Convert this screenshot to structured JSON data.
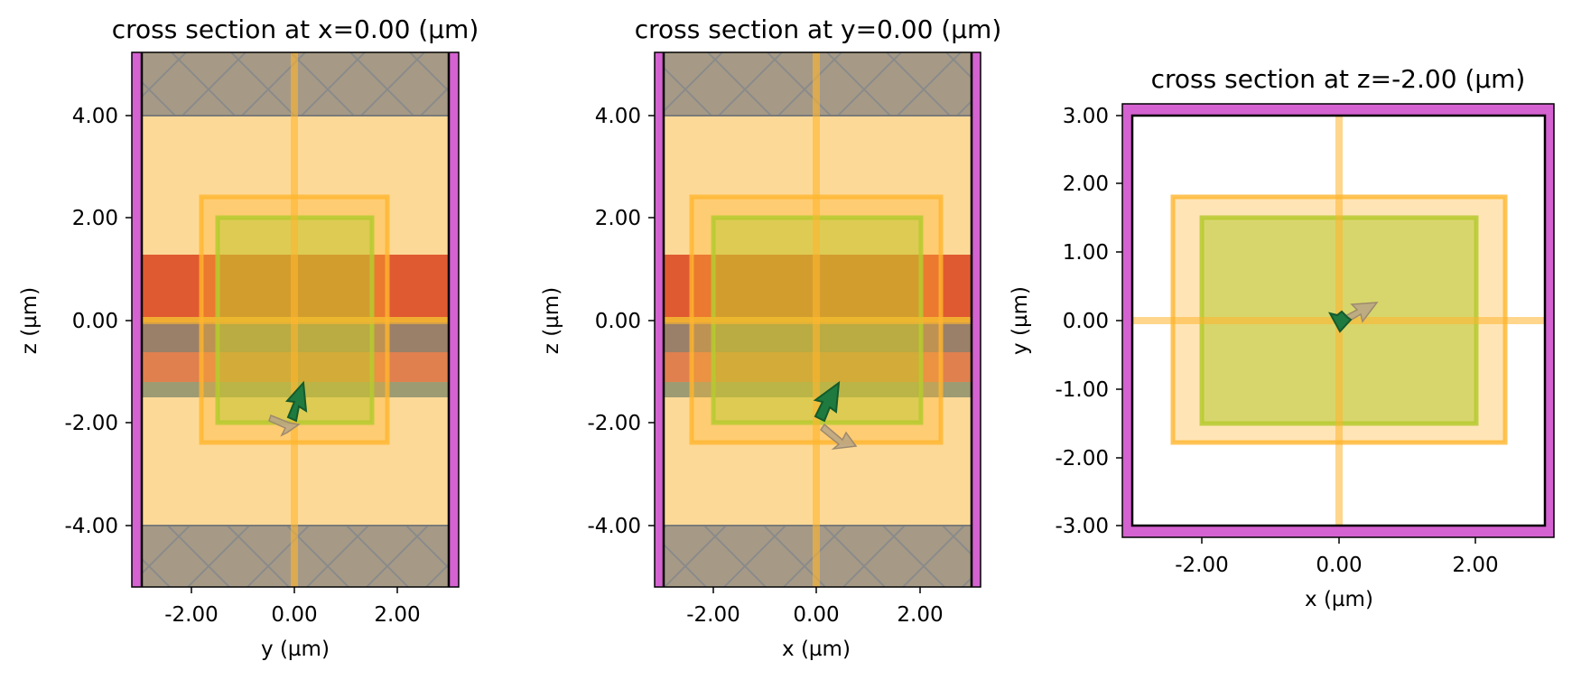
{
  "figure": {
    "panels": [
      {
        "title": "cross section at x=0.00 (µm)",
        "xlabel": "y (µm)",
        "ylabel": "z (µm)",
        "xticks": [
          "-2.00",
          "0.00",
          "2.00"
        ],
        "yticks": [
          "4.00",
          "2.00",
          "0.00",
          "-2.00",
          "-4.00"
        ]
      },
      {
        "title": "cross section at y=0.00 (µm)",
        "xlabel": "x (µm)",
        "ylabel": "z (µm)",
        "xticks": [
          "-2.00",
          "0.00",
          "2.00"
        ],
        "yticks": [
          "4.00",
          "2.00",
          "0.00",
          "-2.00",
          "-4.00"
        ]
      },
      {
        "title": "cross section at z=-2.00 (µm)",
        "xlabel": "x (µm)",
        "ylabel": "y (µm)",
        "xticks": [
          "-2.00",
          "0.00",
          "2.00"
        ],
        "yticks": [
          "3.00",
          "2.00",
          "1.00",
          "0.00",
          "-1.00",
          "-2.00",
          "-3.00"
        ]
      }
    ],
    "colors": {
      "pml": "#d462d0",
      "background": "#fdd997",
      "pml_hatch": "#a69a86",
      "layer_red": "#e05a31",
      "layer_brown": "#9a8068",
      "layer_salmon": "#e0804f",
      "layer_olive": "#9c9b72",
      "monitor_orange": "#ffb52e",
      "monitor_green": "#b6ca2f",
      "source_arrow": "#1f7a3f",
      "pol_arrow": "#b9a586"
    }
  }
}
